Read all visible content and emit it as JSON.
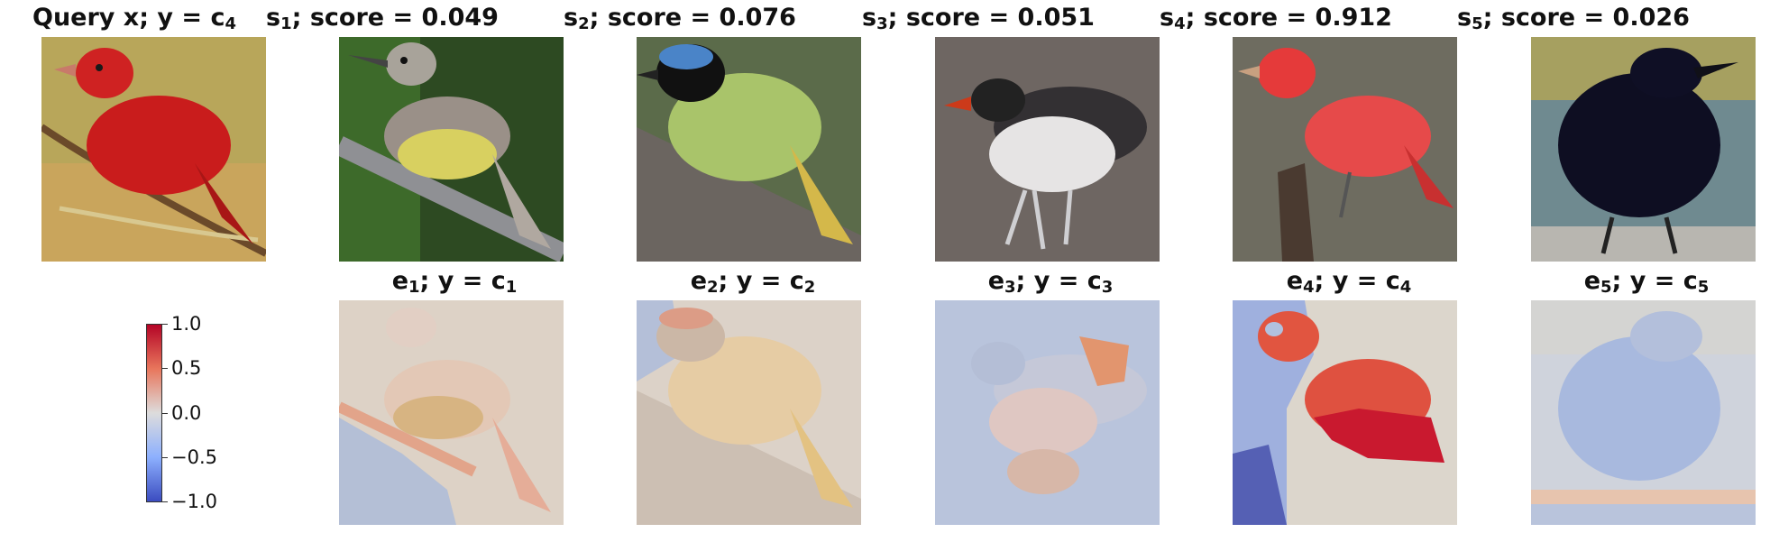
{
  "query": {
    "label": "Query x; y = c",
    "class_sub": "4"
  },
  "samples": [
    {
      "sub": "1",
      "score_label": "; score = ",
      "score": "0.049",
      "expl_class_sub": "1"
    },
    {
      "sub": "2",
      "score_label": "; score = ",
      "score": "0.076",
      "expl_class_sub": "2"
    },
    {
      "sub": "3",
      "score_label": "; score = ",
      "score": "0.051",
      "expl_class_sub": "3"
    },
    {
      "sub": "4",
      "score_label": "; score = ",
      "score": "0.912",
      "expl_class_sub": "4"
    },
    {
      "sub": "5",
      "score_label": "; score = ",
      "score": "0.026",
      "expl_class_sub": "5"
    }
  ],
  "labels": {
    "s": "s",
    "e": "e",
    "y_eq_c": "; y = c"
  },
  "colorbar": {
    "ticks": [
      "1.0",
      "0.5",
      "0.0",
      "−0.5",
      "−1.0"
    ],
    "colormap": [
      "#b40426",
      "#e8765c",
      "#dddcdc",
      "#8db0fe",
      "#3b4cc0"
    ],
    "range": [
      -1.0,
      1.0
    ]
  }
}
